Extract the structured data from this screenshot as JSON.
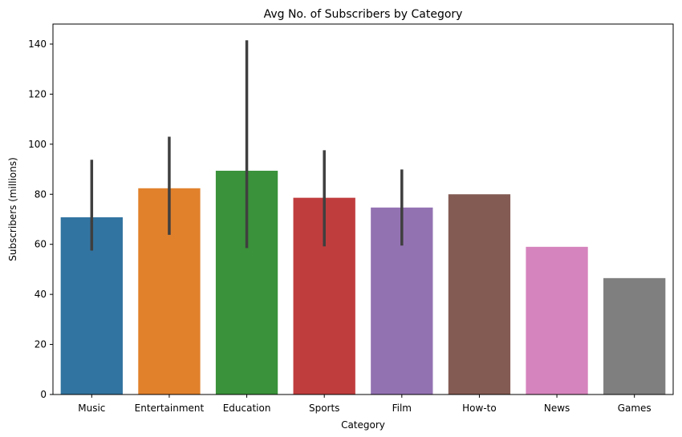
{
  "chart_data": {
    "type": "bar",
    "title": "Avg No. of Subscribers by Category",
    "xlabel": "Category",
    "ylabel": "Subscribers (millions)",
    "ylim": [
      0,
      148
    ],
    "yticks": [
      0,
      20,
      40,
      60,
      80,
      100,
      120,
      140
    ],
    "grid": false,
    "categories": [
      "Music",
      "Entertainment",
      "Education",
      "Sports",
      "Film",
      "How-to",
      "News",
      "Games"
    ],
    "values": [
      70.8,
      82.4,
      89.4,
      78.6,
      74.7,
      80.0,
      59.0,
      46.5
    ],
    "error_low": [
      57.5,
      63.8,
      58.5,
      59.2,
      59.5,
      null,
      null,
      null
    ],
    "error_high": [
      93.8,
      103.0,
      141.5,
      97.6,
      89.9,
      null,
      null,
      null
    ],
    "colors": [
      "#3274a1",
      "#e1812c",
      "#3a923a",
      "#c03d3e",
      "#9372b2",
      "#845b53",
      "#d684bd",
      "#7f7f7f"
    ]
  }
}
